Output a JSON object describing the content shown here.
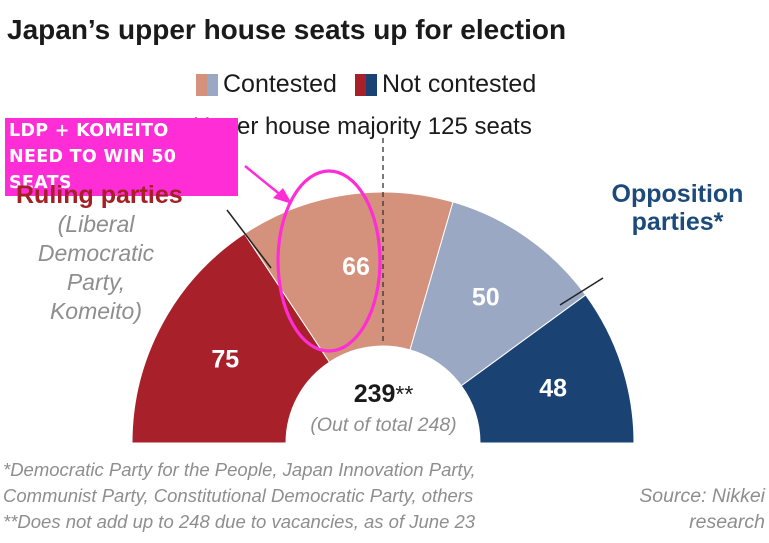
{
  "title": "Japan’s upper house seats up for election",
  "legend": {
    "contested": "Contested",
    "not_contested": "Not contested"
  },
  "colors": {
    "ruling_not_contested": "#a8212a",
    "ruling_contested": "#d4917c",
    "opposition_contested": "#9aa8c4",
    "opposition_not_contested": "#1a4374",
    "annotation": "#ff2dd6"
  },
  "majority_label": "Upper house majority 125 seats",
  "annotation": {
    "line1": "LDP + KOMEITO",
    "line2": "NEED TO WIN 50 SEATS"
  },
  "ruling": {
    "title": "Ruling parties",
    "sub1": "(Liberal",
    "sub2": "Democratic",
    "sub3": "Party,",
    "sub4": "Komeito)"
  },
  "opposition": {
    "title1": "Opposition",
    "title2": "parties*"
  },
  "center": {
    "total": "239",
    "stars": "**",
    "sub": "(Out of total 248)"
  },
  "notes": {
    "n1": "*Democratic Party for the People, Japan Innovation Party,",
    "n2": "Communist Party, Constitutional Democratic Party, others",
    "n3": "**Does not add up to 248 due to vacancies, as of June 23"
  },
  "source": {
    "s1": "Source: Nikkei",
    "s2": "research"
  },
  "chart_data": {
    "type": "pie",
    "shape": "semicircle",
    "total": 239,
    "majority": 125,
    "categories": [
      "Ruling parties — Not contested",
      "Ruling parties — Contested",
      "Opposition parties — Contested",
      "Opposition parties — Not contested"
    ],
    "values": [
      75,
      66,
      50,
      48
    ],
    "labels": [
      "75",
      "66",
      "50",
      "48"
    ]
  }
}
